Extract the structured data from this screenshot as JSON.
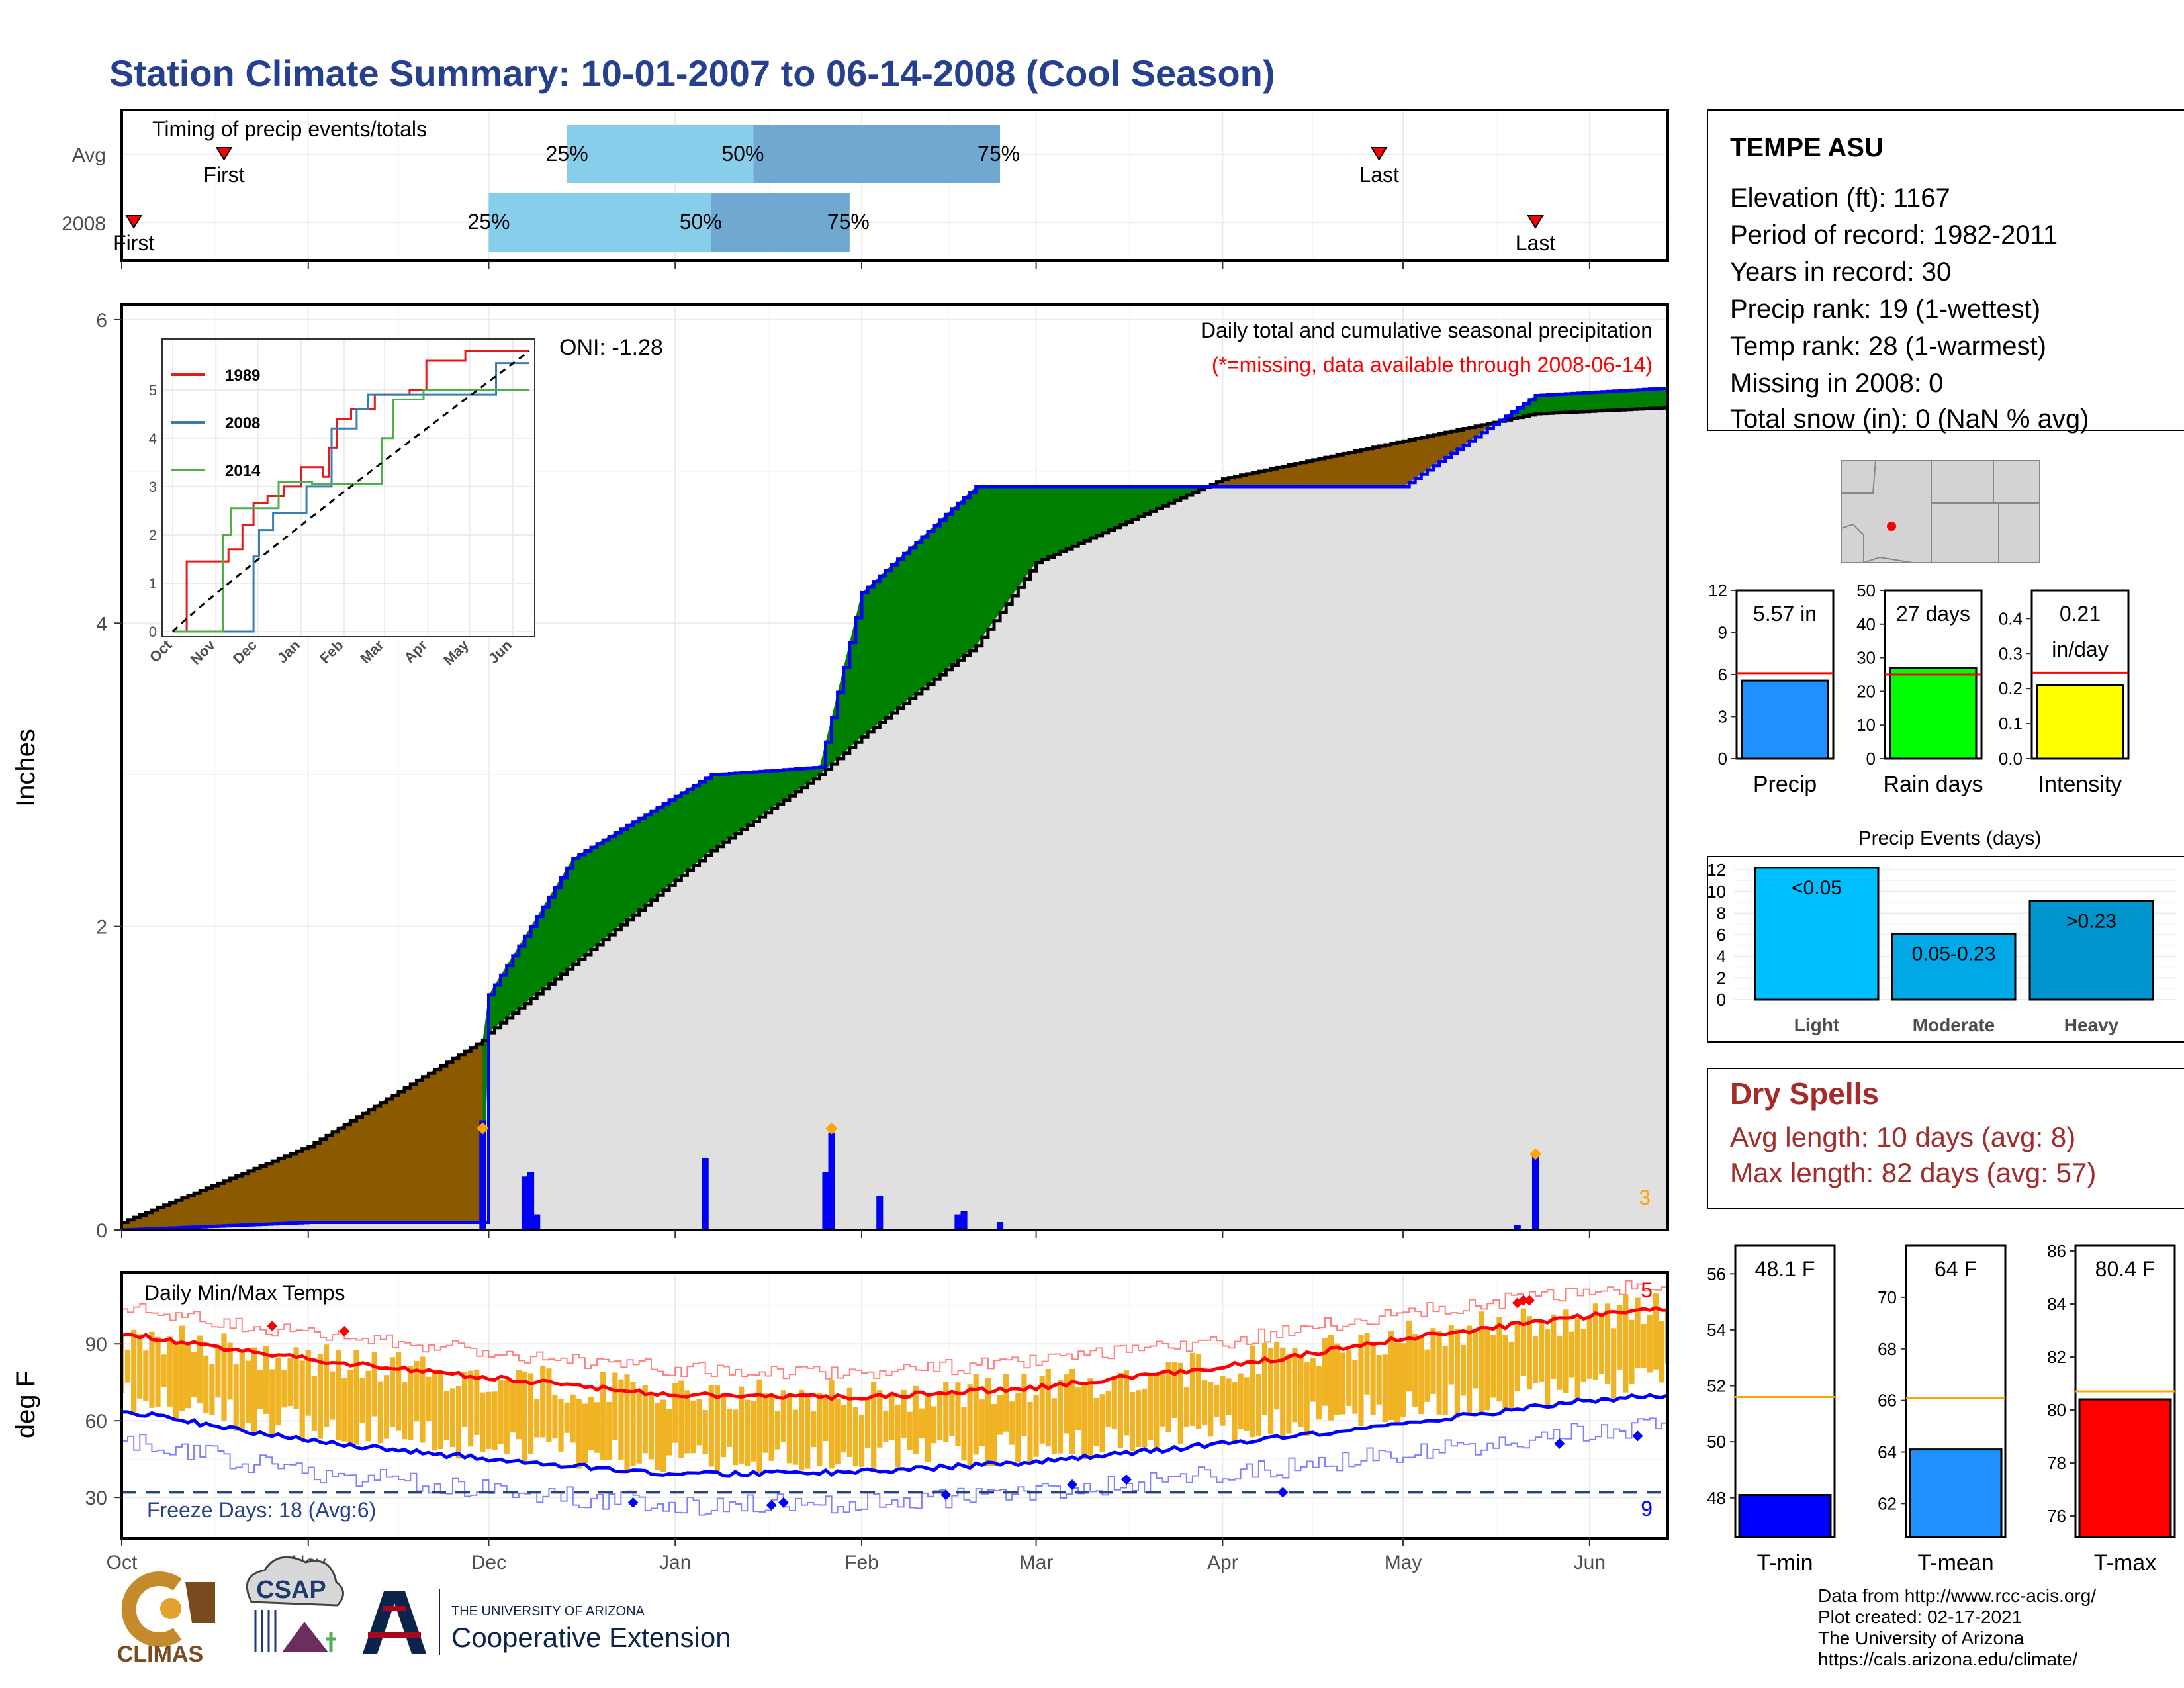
{
  "title": "Station Climate Summary: 10-01-2007 to 06-14-2008 (Cool Season)",
  "timing": {
    "label": "Timing of precip events/totals",
    "rows": [
      {
        "name": "Avg",
        "first_label": "First",
        "last_label": "Last",
        "first": "Oct 18",
        "last": "Apr 27",
        "p25": "Dec 14",
        "p50": "Jan 14",
        "p75": "Feb 24"
      },
      {
        "name": "2008",
        "first_label": "First",
        "last_label": "Last",
        "first": "Oct 3",
        "last": "May 23",
        "p25": "Dec 1",
        "p50": "Jan 7",
        "p75": "Jan 30"
      }
    ],
    "pct_labels": [
      "25%",
      "50%",
      "75%"
    ]
  },
  "precip": {
    "ylabel": "Inches",
    "title": "Daily total and cumulative seasonal precipitation",
    "subtitle": "(*=missing, data available through 2008-06-14)",
    "oni": "ONI: -1.28",
    "corner_count": "3",
    "yticks": [
      "0",
      "2",
      "4",
      "6"
    ],
    "inset_legend": [
      {
        "name": "1989",
        "color": "#e41a1c"
      },
      {
        "name": "2008",
        "color": "#377eb8"
      },
      {
        "name": "2014",
        "color": "#4daf4a"
      }
    ],
    "inset_yticks": [
      "0",
      "1",
      "2",
      "3",
      "4",
      "5"
    ],
    "inset_xticks": [
      "Oct",
      "Nov",
      "Dec",
      "Jan",
      "Feb",
      "Mar",
      "Apr",
      "May",
      "Jun"
    ]
  },
  "temp": {
    "ylabel": "deg F",
    "title": "Daily Min/Max Temps",
    "freeze": "Freeze Days: 18 (Avg:6)",
    "count_hot": "5",
    "count_cold": "9",
    "yticks": [
      "30",
      "60",
      "90"
    ]
  },
  "x_months": [
    "Oct",
    "Nov",
    "Dec",
    "Jan",
    "Feb",
    "Mar",
    "Apr",
    "May",
    "Jun"
  ],
  "station": {
    "name": "TEMPE ASU",
    "lines": [
      "Elevation (ft): 1167",
      "Period of record: 1982-2011",
      "Years in record: 30",
      "Precip rank: 19 (1-wettest)",
      "Temp rank: 28 (1-warmest)",
      "Missing in 2008: 0",
      "Total snow (in): 0 (NaN % avg)"
    ]
  },
  "mini_bars": [
    {
      "label": "Precip",
      "value_label": "5.57 in",
      "value": 5.57,
      "avg": 6.1,
      "ylim": [
        0,
        12
      ],
      "yticks": [
        "0",
        "3",
        "6",
        "9",
        "12"
      ],
      "color": "#1e90ff"
    },
    {
      "label": "Rain days",
      "value_label": "27 days",
      "value": 27,
      "avg": 25,
      "ylim": [
        0,
        50
      ],
      "yticks": [
        "0",
        "10",
        "20",
        "30",
        "40",
        "50"
      ],
      "color": "#00ff00"
    },
    {
      "label": "Intensity",
      "value_label": "0.21",
      "value_label2": "in/day",
      "value": 0.21,
      "avg": 0.245,
      "ylim": [
        0,
        0.48
      ],
      "yticks": [
        "0.0",
        "0.1",
        "0.2",
        "0.3",
        "0.4"
      ],
      "color": "#ffff00"
    }
  ],
  "events": {
    "title": "Precip Events (days)",
    "yticks": [
      "0",
      "2",
      "4",
      "6",
      "8",
      "10",
      "12"
    ],
    "bars": [
      {
        "label": "Light",
        "value_label": "<0.05",
        "value": 12.2,
        "color": "#00bfff"
      },
      {
        "label": "Moderate",
        "value_label": "0.05-0.23",
        "value": 6.1,
        "color": "#00a9e6"
      },
      {
        "label": "Heavy",
        "value_label": ">0.23",
        "value": 9.1,
        "color": "#0094cc"
      }
    ]
  },
  "dry": {
    "title": "Dry Spells",
    "avg": "Avg length: 10 days (avg: 8)",
    "max": "Max length: 82 days (avg: 57)"
  },
  "temp_bars": [
    {
      "label": "T-min",
      "value_label": "48.1 F",
      "value": 48.1,
      "avg": 51.6,
      "ylim": [
        46.6,
        57
      ],
      "yticks": [
        "48",
        "50",
        "52",
        "54",
        "56"
      ],
      "color": "#0000ff"
    },
    {
      "label": "T-mean",
      "value_label": "64 F",
      "value": 64.1,
      "avg": 66.1,
      "ylim": [
        60.7,
        72
      ],
      "yticks": [
        "62",
        "64",
        "66",
        "68",
        "70"
      ],
      "color": "#1e90ff"
    },
    {
      "label": "T-max",
      "value_label": "80.4 F",
      "value": 80.4,
      "avg": 80.7,
      "ylim": [
        75.2,
        86.2
      ],
      "yticks": [
        "76",
        "78",
        "80",
        "82",
        "84",
        "86"
      ],
      "color": "#ff0000"
    }
  ],
  "footer": {
    "lines": [
      "Data from http://www.rcc-acis.org/",
      "Plot created: 02-17-2021",
      "The University of Arizona",
      "https://cals.arizona.edu/climate/"
    ],
    "logo_climas": "CLIMAS",
    "logo_csap": "CSAP",
    "ua_small": "THE UNIVERSITY OF ARIZONA",
    "ua_big": "Cooperative Extension"
  },
  "chart_data": [
    {
      "type": "area",
      "name": "cumulative-precip",
      "xlabel": "",
      "ylabel": "Inches",
      "ylim": [
        0,
        6.1
      ],
      "x": [
        "10-01",
        "11-01",
        "11-30",
        "12-01",
        "12-15",
        "01-07",
        "01-25",
        "02-01",
        "02-20",
        "03-01",
        "04-01",
        "05-01",
        "05-23",
        "06-14"
      ],
      "series": [
        {
          "name": "",
          "values": [
            0.0,
            0.05,
            0.05,
            1.55,
            2.45,
            3.0,
            3.05,
            4.2,
            4.9,
            4.9,
            4.9,
            4.9,
            5.5,
            5.55
          ]
        },
        {
          "name": "",
          "values": [
            0.05,
            0.55,
            1.25,
            1.3,
            1.75,
            2.5,
            3.0,
            3.25,
            3.85,
            4.4,
            4.95,
            5.2,
            5.38,
            5.42
          ]
        }
      ],
      "daily_events": [
        {
          "date": "11-30",
          "inches": 0.72
        },
        {
          "date": "12-07",
          "inches": 0.35
        },
        {
          "date": "12-08",
          "inches": 0.38
        },
        {
          "date": "12-09",
          "inches": 0.1
        },
        {
          "date": "01-06",
          "inches": 0.47
        },
        {
          "date": "01-26",
          "inches": 0.38
        },
        {
          "date": "01-27",
          "inches": 0.64
        },
        {
          "date": "02-04",
          "inches": 0.22
        },
        {
          "date": "02-17",
          "inches": 0.1
        },
        {
          "date": "02-18",
          "inches": 0.12
        },
        {
          "date": "02-24",
          "inches": 0.05
        },
        {
          "date": "05-20",
          "inches": 0.03
        },
        {
          "date": "05-23",
          "inches": 0.5
        }
      ]
    },
    {
      "type": "line",
      "name": "daily-temps",
      "ylabel": "deg F",
      "ylim": [
        14,
        118
      ],
      "x": [
        "10-01",
        "11-01",
        "12-01",
        "01-01",
        "02-01",
        "03-01",
        "04-01",
        "05-01",
        "06-01",
        "06-14"
      ],
      "series": [
        {
          "name": "",
          "values": [
            94,
            84,
            77,
            70,
            69,
            73,
            81,
            92,
            101,
            104
          ]
        },
        {
          "name": "",
          "values": [
            64,
            52,
            45,
            39,
            40,
            44,
            51,
            59,
            68,
            70
          ]
        }
      ]
    }
  ]
}
